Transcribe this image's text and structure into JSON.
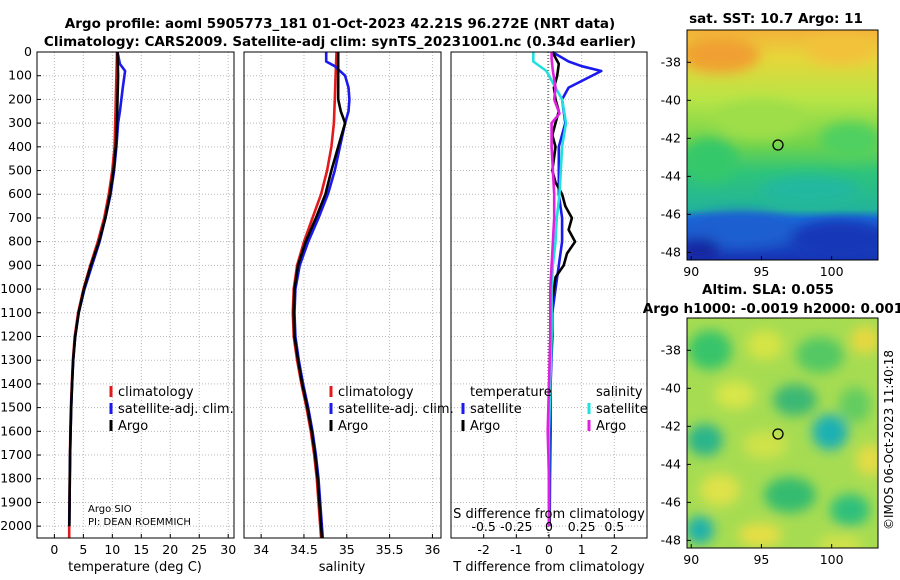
{
  "figure": {
    "title_line1": "Argo profile: aoml 5905773_181 01-Oct-2023 42.21S 96.272E (NRT data)",
    "title_line2": "Climatology: CARS2009. Satellite-adj clim: synTS_20231001.nc (0.34d earlier)",
    "credit": "©IMOS 06-Oct-2023 11:40:18",
    "argo_owner": "Argo SIO",
    "pi": "PI: DEAN ROEMMICH",
    "colors": {
      "climatology": "#e31a1c",
      "satellite": "#1a1aee",
      "argo": "#000000",
      "salinity_sat": "#22e0e0",
      "salinity_argo": "#e020e0"
    }
  },
  "chart_data": [
    {
      "type": "line",
      "panel": "temperature",
      "xlabel": "temperature (deg C)",
      "xlim": [
        -3,
        31
      ],
      "xticks": [
        "0",
        "5",
        "10",
        "15",
        "20",
        "25",
        "30"
      ],
      "xtick_values": [
        0,
        5,
        10,
        15,
        20,
        25,
        30
      ],
      "ylim": [
        0,
        2050
      ],
      "yticks": [
        "0",
        "100",
        "200",
        "300",
        "400",
        "500",
        "600",
        "700",
        "800",
        "900",
        "1000",
        "1100",
        "1200",
        "1300",
        "1400",
        "1500",
        "1600",
        "1700",
        "1800",
        "1900",
        "2000"
      ],
      "ytick_values": [
        0,
        100,
        200,
        300,
        400,
        500,
        600,
        700,
        800,
        900,
        1000,
        1100,
        1200,
        1300,
        1400,
        1500,
        1600,
        1700,
        1800,
        1900,
        2000
      ],
      "legend": [
        "climatology",
        "satellite-adj. clim.",
        "Argo"
      ],
      "series": [
        {
          "name": "climatology",
          "color": "#e31a1c",
          "depth": [
            0,
            100,
            200,
            300,
            400,
            500,
            600,
            700,
            800,
            900,
            1000,
            1100,
            1200,
            1300,
            1400,
            1500,
            1600,
            1700,
            1800,
            1900,
            2000,
            2050
          ],
          "values": [
            10.8,
            10.7,
            10.6,
            10.5,
            10.4,
            10.0,
            9.4,
            8.6,
            7.5,
            6.2,
            5.0,
            4.1,
            3.5,
            3.2,
            3.0,
            2.85,
            2.75,
            2.7,
            2.65,
            2.6,
            2.55,
            2.55
          ]
        },
        {
          "name": "satellite-adj. clim.",
          "color": "#1a1aee",
          "depth": [
            0,
            50,
            80,
            150,
            250,
            300,
            400,
            500,
            600,
            700,
            800,
            900,
            1000,
            1100,
            1200,
            1300,
            1400,
            1500,
            1600,
            1700,
            1800,
            1900,
            2000
          ],
          "values": [
            10.9,
            11.3,
            12.2,
            11.8,
            11.3,
            11.0,
            10.7,
            10.3,
            9.7,
            8.8,
            7.8,
            6.5,
            5.2,
            4.2,
            3.6,
            3.25,
            3.05,
            2.9,
            2.8,
            2.72,
            2.66,
            2.62,
            2.58
          ]
        },
        {
          "name": "Argo",
          "color": "#000000",
          "depth": [
            0,
            100,
            200,
            300,
            400,
            500,
            600,
            700,
            800,
            900,
            1000,
            1100,
            1200,
            1300,
            1400,
            1500,
            1600,
            1700,
            1800,
            1900,
            2000
          ],
          "values": [
            10.9,
            11.0,
            10.9,
            10.8,
            10.6,
            10.2,
            9.6,
            8.8,
            7.7,
            6.3,
            5.1,
            4.2,
            3.6,
            3.25,
            3.05,
            2.9,
            2.8,
            2.72,
            2.66,
            2.62,
            2.58
          ]
        }
      ]
    },
    {
      "type": "line",
      "panel": "salinity",
      "xlabel": "salinity",
      "xlim": [
        33.8,
        36.1
      ],
      "xticks": [
        "34",
        "34.5",
        "35",
        "35.5",
        "36"
      ],
      "xtick_values": [
        34,
        34.5,
        35,
        35.5,
        36
      ],
      "ylim": [
        0,
        2050
      ],
      "legend": [
        "climatology",
        "satellite-adj. clim.",
        "Argo"
      ],
      "series": [
        {
          "name": "climatology",
          "color": "#e31a1c",
          "depth": [
            0,
            100,
            200,
            300,
            400,
            500,
            600,
            700,
            800,
            900,
            1000,
            1100,
            1200,
            1300,
            1400,
            1500,
            1600,
            1700,
            1800,
            1900,
            2000,
            2050
          ],
          "values": [
            34.88,
            34.87,
            34.86,
            34.85,
            34.82,
            34.77,
            34.7,
            34.6,
            34.5,
            34.42,
            34.38,
            34.37,
            34.38,
            34.42,
            34.47,
            34.53,
            34.58,
            34.62,
            34.65,
            34.67,
            34.69,
            34.7
          ]
        },
        {
          "name": "satellite-adj. clim.",
          "color": "#1a1aee",
          "depth": [
            0,
            40,
            60,
            100,
            150,
            200,
            250,
            300,
            400,
            500,
            600,
            700,
            800,
            900,
            1000,
            1100,
            1200,
            1300,
            1400,
            1500,
            1600,
            1700,
            1800,
            1900,
            2000,
            2050
          ],
          "values": [
            34.76,
            34.76,
            34.86,
            34.98,
            35.02,
            35.03,
            35.02,
            34.98,
            34.92,
            34.86,
            34.78,
            34.67,
            34.55,
            34.45,
            34.4,
            34.39,
            34.4,
            34.44,
            34.49,
            34.55,
            34.6,
            34.64,
            34.67,
            34.69,
            34.71,
            34.72
          ]
        },
        {
          "name": "Argo",
          "color": "#000000",
          "depth": [
            0,
            100,
            200,
            250,
            300,
            400,
            500,
            600,
            700,
            800,
            900,
            1000,
            1100,
            1200,
            1300,
            1400,
            1500,
            1600,
            1700,
            1800,
            1900,
            2000,
            2050
          ],
          "values": [
            34.9,
            34.9,
            34.9,
            34.93,
            34.98,
            34.9,
            34.82,
            34.75,
            34.64,
            34.52,
            34.43,
            34.39,
            34.38,
            34.39,
            34.43,
            34.48,
            34.54,
            34.59,
            34.63,
            34.66,
            34.68,
            34.7,
            34.71
          ]
        }
      ]
    },
    {
      "type": "line",
      "panel": "difference",
      "xlabel": "T difference from climatology",
      "xlabel_top": "S difference from climatology",
      "xlim": [
        -3,
        3
      ],
      "xticks": [
        "-2",
        "-1",
        "0",
        "1",
        "2"
      ],
      "xtick_values": [
        -2,
        -1,
        0,
        1,
        2
      ],
      "xticks_top": [
        "-0.5",
        "-0.25",
        "0",
        "0.25",
        "0.5"
      ],
      "xtick_top_values": [
        -0.5,
        -0.25,
        0,
        0.25,
        0.5
      ],
      "ylim": [
        0,
        2050
      ],
      "legend_temperature_title": "temperature",
      "legend_salinity_title": "salinity",
      "legend_temperature": [
        "satellite",
        "Argo"
      ],
      "legend_salinity": [
        "satellite",
        "Argo"
      ],
      "series": [
        {
          "name": "temperature satellite",
          "color": "#1a1aee",
          "depth": [
            0,
            40,
            60,
            80,
            150,
            200,
            300,
            400,
            500,
            600,
            700,
            800,
            900,
            1000,
            1100,
            1200,
            1400,
            1600,
            1800,
            2000
          ],
          "values": [
            0.1,
            0.6,
            1.0,
            1.6,
            0.6,
            0.4,
            0.5,
            0.3,
            0.3,
            0.3,
            0.4,
            0.4,
            0.3,
            0.2,
            0.1,
            0.1,
            0.05,
            0.05,
            0.03,
            0.02
          ]
        },
        {
          "name": "temperature Argo",
          "color": "#000000",
          "depth": [
            0,
            50,
            100,
            150,
            200,
            250,
            300,
            350,
            400,
            450,
            500,
            550,
            600,
            650,
            700,
            750,
            800,
            850,
            900,
            950,
            1000,
            1100,
            1200,
            1300,
            1400,
            1500,
            1600,
            1700,
            1800,
            1900,
            2000
          ],
          "values": [
            0.1,
            0.3,
            0.25,
            0.15,
            0.2,
            0.3,
            0.2,
            0.1,
            0.2,
            0.15,
            0.1,
            0.2,
            0.4,
            0.5,
            0.7,
            0.6,
            0.8,
            0.55,
            0.45,
            0.2,
            0.15,
            0.05,
            0.1,
            0.05,
            0.05,
            0.0,
            0.0,
            0.0,
            0.0,
            0.0,
            0.02
          ]
        },
        {
          "name": "salinity satellite",
          "color": "#22e0e0",
          "depth": [
            0,
            40,
            80,
            150,
            200,
            300,
            400,
            500,
            600,
            700,
            800,
            900,
            1000,
            1200,
            1400,
            1600,
            1800,
            2000
          ],
          "values": [
            -0.12,
            -0.12,
            -0.02,
            0.05,
            0.1,
            0.13,
            0.1,
            0.09,
            0.08,
            0.06,
            0.05,
            0.03,
            0.02,
            0.02,
            0.01,
            0.0,
            0.0,
            0.0
          ]
        },
        {
          "name": "salinity Argo",
          "color": "#e020e0",
          "depth": [
            0,
            30,
            80,
            150,
            200,
            260,
            300,
            400,
            500,
            600,
            700,
            800,
            900,
            1000,
            1200,
            1400,
            1600,
            1800,
            2000
          ],
          "values": [
            0.02,
            0.02,
            0.03,
            0.05,
            0.04,
            0.08,
            0.02,
            0.02,
            0.03,
            0.04,
            0.04,
            0.03,
            0.02,
            0.01,
            0.01,
            0.0,
            -0.01,
            0.0,
            0.0
          ]
        }
      ]
    },
    {
      "type": "heatmap",
      "panel": "sst_map",
      "title": "sat. SST: 10.7  Argo: 11",
      "xticks": [
        "90",
        "95",
        "100"
      ],
      "xtick_values": [
        90,
        95,
        100
      ],
      "yticks": [
        "-38",
        "-40",
        "-42",
        "-44",
        "-46",
        "-48"
      ],
      "ytick_values": [
        -38,
        -40,
        -42,
        -44,
        -46,
        -48
      ],
      "xlim": [
        89.7,
        103.3
      ],
      "ylim": [
        -48.4,
        -36.3
      ],
      "marker": {
        "lon": 96.272,
        "lat": -42.21
      }
    },
    {
      "type": "heatmap",
      "panel": "sla_map",
      "title_line1": "Altim. SLA: 0.055",
      "title_line2": "Argo h1000: -0.0019  h2000: 0.001",
      "xticks": [
        "90",
        "95",
        "100"
      ],
      "xtick_values": [
        90,
        95,
        100
      ],
      "yticks": [
        "-38",
        "-40",
        "-42",
        "-44",
        "-46",
        "-48"
      ],
      "ytick_values": [
        -38,
        -40,
        -42,
        -44,
        -46,
        -48
      ],
      "xlim": [
        89.7,
        103.3
      ],
      "ylim": [
        -48.4,
        -36.3
      ],
      "marker": {
        "lon": 96.272,
        "lat": -42.21
      }
    }
  ]
}
